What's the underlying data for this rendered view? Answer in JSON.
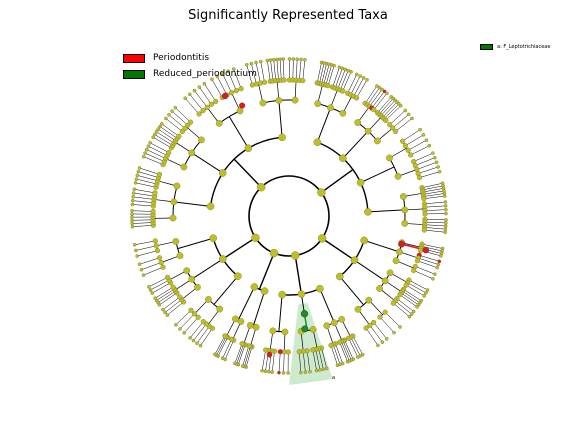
{
  "title": "Significantly Represented Taxa",
  "legend": [
    {
      "label": "Periodontitis",
      "color": "#ff0000"
    },
    {
      "label": "Reduced_periodontium",
      "color": "#007700"
    }
  ],
  "clade_legend": {
    "label": "a: F_Leptotrichiaceae",
    "color": "#007700"
  },
  "clade_marker": "a",
  "node_colors": {
    "default": "#bfbf1f",
    "periodontitis": "#e31a1c",
    "reduced": "#1f8f1f",
    "shade": "#a6d8a6"
  }
}
